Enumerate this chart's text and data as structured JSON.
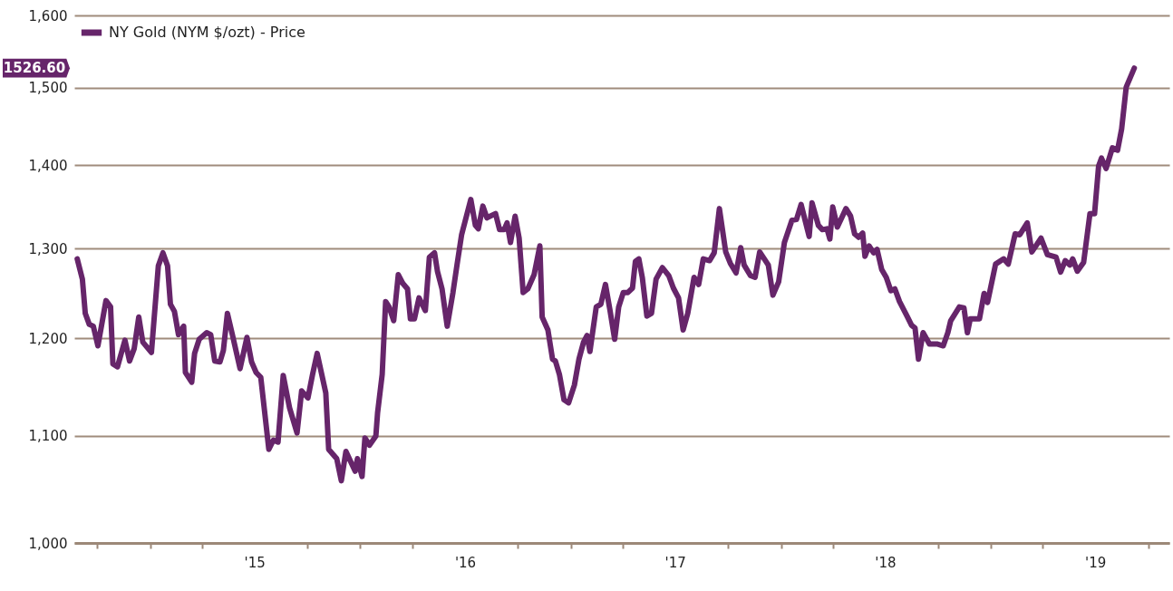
{
  "chart_data": {
    "type": "line",
    "x": [
      "2014-08-27",
      "2014-09-05",
      "2014-09-10",
      "2014-09-17",
      "2014-09-24",
      "2014-10-02",
      "2014-10-16",
      "2014-10-24",
      "2014-10-28",
      "2014-11-05",
      "2014-11-18",
      "2014-11-26",
      "2014-12-04",
      "2014-12-12",
      "2014-12-19",
      "2015-01-03",
      "2015-01-07",
      "2015-01-15",
      "2015-01-23",
      "2015-01-31",
      "2015-02-05",
      "2015-02-12",
      "2015-02-19",
      "2015-02-28",
      "2015-03-03",
      "2015-03-14",
      "2015-03-19",
      "2015-03-27",
      "2015-04-09",
      "2015-04-16",
      "2015-04-23",
      "2015-05-02",
      "2015-05-08",
      "2015-05-15",
      "2015-05-24",
      "2015-06-06",
      "2015-06-18",
      "2015-06-26",
      "2015-07-04",
      "2015-07-12",
      "2015-07-26",
      "2015-08-03",
      "2015-08-11",
      "2015-08-20",
      "2015-08-31",
      "2015-09-13",
      "2015-09-21",
      "2015-10-02",
      "2015-10-10",
      "2015-10-18",
      "2015-11-02",
      "2015-11-07",
      "2015-11-21",
      "2015-11-29",
      "2015-12-07",
      "2015-12-23",
      "2015-12-27",
      "2016-01-04",
      "2016-01-09",
      "2016-01-17",
      "2016-01-28",
      "2016-01-31",
      "2016-02-08",
      "2016-02-14",
      "2016-02-20",
      "2016-02-28",
      "2016-03-07",
      "2016-03-15",
      "2016-03-23",
      "2016-03-28",
      "2016-04-04",
      "2016-04-12",
      "2016-04-23",
      "2016-04-30",
      "2016-05-09",
      "2016-05-14",
      "2016-05-22",
      "2016-05-31",
      "2016-06-10",
      "2016-06-17",
      "2016-06-25",
      "2016-07-11",
      "2016-07-19",
      "2016-07-24",
      "2016-08-01",
      "2016-08-08",
      "2016-08-23",
      "2016-08-30",
      "2016-09-07",
      "2016-09-12",
      "2016-09-18",
      "2016-09-26",
      "2016-10-03",
      "2016-10-10",
      "2016-10-18",
      "2016-10-29",
      "2016-11-08",
      "2016-11-12",
      "2016-11-22",
      "2016-11-30",
      "2016-12-05",
      "2016-12-12",
      "2016-12-20",
      "2016-12-28",
      "2017-01-07",
      "2017-01-15",
      "2017-01-23",
      "2017-01-29",
      "2017-02-03",
      "2017-02-14",
      "2017-02-22",
      "2017-03-02",
      "2017-03-10",
      "2017-03-18",
      "2017-03-25",
      "2017-04-02",
      "2017-04-10",
      "2017-04-18",
      "2017-04-23",
      "2017-04-29",
      "2017-05-05",
      "2017-05-13",
      "2017-05-21",
      "2017-05-29",
      "2017-06-09",
      "2017-06-20",
      "2017-06-28",
      "2017-07-07",
      "2017-07-15",
      "2017-07-23",
      "2017-08-03",
      "2017-08-11",
      "2017-08-19",
      "2017-08-30",
      "2017-09-07",
      "2017-09-16",
      "2017-09-27",
      "2017-10-05",
      "2017-10-15",
      "2017-10-23",
      "2017-10-29",
      "2017-11-09",
      "2017-11-17",
      "2017-11-25",
      "2017-12-10",
      "2017-12-18",
      "2017-12-28",
      "2018-01-07",
      "2018-01-20",
      "2018-01-28",
      "2018-02-05",
      "2018-02-19",
      "2018-02-24",
      "2018-03-07",
      "2018-03-14",
      "2018-03-22",
      "2018-03-27",
      "2018-04-01",
      "2018-04-09",
      "2018-04-24",
      "2018-05-02",
      "2018-05-09",
      "2018-05-16",
      "2018-05-23",
      "2018-05-27",
      "2018-06-03",
      "2018-06-11",
      "2018-06-17",
      "2018-06-25",
      "2018-07-03",
      "2018-07-11",
      "2018-07-18",
      "2018-07-26",
      "2018-08-08",
      "2018-08-16",
      "2018-08-22",
      "2018-08-28",
      "2018-09-05",
      "2018-09-16",
      "2018-09-29",
      "2018-10-10",
      "2018-10-18",
      "2018-10-23",
      "2018-11-07",
      "2018-11-15",
      "2018-11-21",
      "2018-11-26",
      "2018-12-12",
      "2018-12-20",
      "2018-12-26",
      "2019-01-09",
      "2019-01-23",
      "2019-01-31",
      "2019-02-12",
      "2019-02-20",
      "2019-03-05",
      "2019-03-13",
      "2019-03-29",
      "2019-04-09",
      "2019-04-24",
      "2019-05-02",
      "2019-05-10",
      "2019-05-18",
      "2019-05-23",
      "2019-05-31",
      "2019-06-11",
      "2019-06-22",
      "2019-06-30",
      "2019-07-07",
      "2019-07-12",
      "2019-07-20",
      "2019-07-31",
      "2019-08-09",
      "2019-08-16",
      "2019-08-24",
      "2019-09-07"
    ],
    "series": [
      {
        "name": "NY Gold (NYM $/ozt) - Price",
        "color": "#66256a",
        "values": [
          1288,
          1265,
          1227,
          1215,
          1213,
          1192,
          1241,
          1234,
          1173,
          1170,
          1198,
          1176,
          1189,
          1223,
          1196,
          1185,
          1216,
          1280,
          1295,
          1280,
          1237,
          1229,
          1204,
          1213,
          1164,
          1154,
          1184,
          1199,
          1206,
          1204,
          1176,
          1175,
          1187,
          1227,
          1203,
          1168,
          1201,
          1175,
          1164,
          1159,
          1087,
          1096,
          1094,
          1161,
          1128,
          1103,
          1145,
          1138,
          1162,
          1184,
          1143,
          1087,
          1078,
          1057,
          1085,
          1066,
          1078,
          1061,
          1098,
          1091,
          1100,
          1123,
          1162,
          1240,
          1234,
          1219,
          1270,
          1260,
          1254,
          1221,
          1221,
          1244,
          1230,
          1290,
          1295,
          1274,
          1254,
          1213,
          1250,
          1281,
          1316,
          1358,
          1327,
          1323,
          1350,
          1336,
          1341,
          1322,
          1322,
          1330,
          1307,
          1338,
          1312,
          1250,
          1254,
          1270,
          1303,
          1223,
          1209,
          1178,
          1176,
          1162,
          1136,
          1133,
          1151,
          1178,
          1196,
          1203,
          1186,
          1234,
          1237,
          1259,
          1230,
          1199,
          1234,
          1250,
          1250,
          1255,
          1285,
          1288,
          1267,
          1224,
          1227,
          1265,
          1278,
          1269,
          1255,
          1244,
          1209,
          1227,
          1267,
          1259,
          1288,
          1286,
          1295,
          1347,
          1296,
          1283,
          1272,
          1301,
          1281,
          1269,
          1267,
          1296,
          1281,
          1247,
          1262,
          1307,
          1333,
          1334,
          1352,
          1314,
          1354,
          1327,
          1322,
          1323,
          1311,
          1349,
          1325,
          1347,
          1338,
          1317,
          1313,
          1318,
          1291,
          1303,
          1295,
          1299,
          1276,
          1267,
          1252,
          1254,
          1240,
          1224,
          1214,
          1211,
          1178,
          1206,
          1194,
          1194,
          1192,
          1206,
          1219,
          1234,
          1233,
          1206,
          1221,
          1221,
          1249,
          1239,
          1282,
          1288,
          1282,
          1317,
          1316,
          1330,
          1296,
          1312,
          1293,
          1290,
          1273,
          1286,
          1281,
          1288,
          1274,
          1284,
          1341,
          1341,
          1399,
          1409,
          1396,
          1422,
          1419,
          1446,
          1501,
          1526.6
        ]
      }
    ],
    "xlim": [
      "2014-08-22",
      "2019-11-07"
    ],
    "xticks": [
      {
        "value": "2014-10-01",
        "label": null
      },
      {
        "value": "2015-01-01",
        "label": null
      },
      {
        "value": "2015-04-01",
        "label": null
      },
      {
        "value": "2015-07-01",
        "label": "'15"
      },
      {
        "value": "2015-10-01",
        "label": null
      },
      {
        "value": "2016-01-01",
        "label": null
      },
      {
        "value": "2016-04-01",
        "label": null
      },
      {
        "value": "2016-07-01",
        "label": "'16"
      },
      {
        "value": "2016-10-01",
        "label": null
      },
      {
        "value": "2017-01-01",
        "label": null
      },
      {
        "value": "2017-04-01",
        "label": null
      },
      {
        "value": "2017-07-01",
        "label": "'17"
      },
      {
        "value": "2017-10-01",
        "label": null
      },
      {
        "value": "2018-01-01",
        "label": null
      },
      {
        "value": "2018-04-01",
        "label": null
      },
      {
        "value": "2018-07-01",
        "label": "'18"
      },
      {
        "value": "2018-10-01",
        "label": null
      },
      {
        "value": "2019-01-01",
        "label": null
      },
      {
        "value": "2019-04-01",
        "label": null
      },
      {
        "value": "2019-07-01",
        "label": "'19"
      },
      {
        "value": "2019-10-01",
        "label": null
      }
    ],
    "ylim": [
      1000,
      1600
    ],
    "yticks": [
      {
        "value": 1000,
        "label": "1,000"
      },
      {
        "value": 1100,
        "label": "1,100"
      },
      {
        "value": 1200,
        "label": "1,200"
      },
      {
        "value": 1300,
        "label": "1,300"
      },
      {
        "value": 1400,
        "label": "1,400"
      },
      {
        "value": 1500,
        "label": "1,500"
      },
      {
        "value": 1600,
        "label": "1,600"
      }
    ],
    "log": true,
    "grid": "y",
    "legend": "top left",
    "annotations": [
      "1526.60"
    ]
  }
}
